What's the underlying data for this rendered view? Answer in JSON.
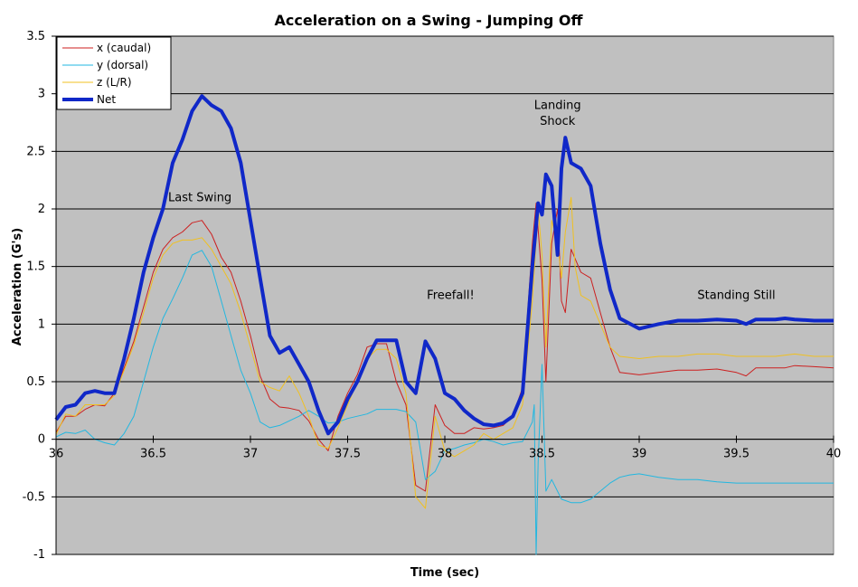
{
  "chart_data": {
    "type": "line",
    "title": "Acceleration on a Swing - Jumping Off",
    "xlabel": "Time (sec)",
    "ylabel": "Acceleration (G's)",
    "xlim": [
      36,
      40
    ],
    "ylim": [
      -1,
      3.5
    ],
    "x_ticks": [
      36,
      36.5,
      37,
      37.5,
      38,
      38.5,
      39,
      39.5,
      40
    ],
    "x_tick_labels": [
      "36",
      "36.5",
      "37",
      "37.5",
      "38",
      "38.5",
      "39",
      "39.5",
      "40"
    ],
    "y_ticks": [
      -1,
      -0.5,
      0,
      0.5,
      1,
      1.5,
      2,
      2.5,
      3,
      3.5
    ],
    "y_tick_labels": [
      "-1",
      "-0.5",
      "0",
      "0.5",
      "1",
      "1.5",
      "2",
      "2.5",
      "3",
      "3.5"
    ],
    "grid": "horizontal",
    "legend_position": "top-left",
    "plot_background": "#c0c0c0",
    "series": [
      {
        "name": "x (caudal)",
        "color": "#cc1f1f",
        "line_width": 1,
        "x": [
          36.0,
          36.05,
          36.1,
          36.15,
          36.2,
          36.25,
          36.3,
          36.35,
          36.4,
          36.45,
          36.5,
          36.55,
          36.6,
          36.65,
          36.7,
          36.75,
          36.8,
          36.85,
          36.9,
          36.95,
          37.0,
          37.05,
          37.1,
          37.15,
          37.2,
          37.25,
          37.3,
          37.35,
          37.4,
          37.45,
          37.5,
          37.55,
          37.6,
          37.65,
          37.7,
          37.75,
          37.8,
          37.85,
          37.9,
          37.95,
          38.0,
          38.05,
          38.1,
          38.15,
          38.2,
          38.25,
          38.3,
          38.35,
          38.4,
          38.45,
          38.47,
          38.5,
          38.52,
          38.55,
          38.58,
          38.6,
          38.62,
          38.65,
          38.7,
          38.75,
          38.8,
          38.85,
          38.9,
          39.0,
          39.1,
          39.2,
          39.3,
          39.4,
          39.5,
          39.55,
          39.6,
          39.7,
          39.75,
          39.8,
          39.9,
          40.0
        ],
        "y": [
          0.06,
          0.2,
          0.2,
          0.26,
          0.3,
          0.29,
          0.4,
          0.62,
          0.85,
          1.15,
          1.45,
          1.65,
          1.75,
          1.8,
          1.88,
          1.9,
          1.78,
          1.58,
          1.45,
          1.2,
          0.9,
          0.55,
          0.35,
          0.28,
          0.27,
          0.25,
          0.16,
          0.0,
          -0.1,
          0.2,
          0.4,
          0.56,
          0.8,
          0.83,
          0.83,
          0.5,
          0.3,
          -0.4,
          -0.45,
          0.3,
          0.12,
          0.05,
          0.05,
          0.1,
          0.09,
          0.1,
          0.12,
          0.2,
          0.45,
          1.7,
          2.05,
          1.38,
          0.5,
          1.7,
          2.0,
          1.2,
          1.1,
          1.65,
          1.45,
          1.4,
          1.1,
          0.8,
          0.58,
          0.56,
          0.58,
          0.6,
          0.6,
          0.61,
          0.58,
          0.55,
          0.62,
          0.62,
          0.62,
          0.64,
          0.63,
          0.62
        ]
      },
      {
        "name": "y (dorsal)",
        "color": "#22b7e0",
        "line_width": 1,
        "x": [
          36.0,
          36.05,
          36.1,
          36.15,
          36.2,
          36.25,
          36.3,
          36.35,
          36.4,
          36.45,
          36.5,
          36.55,
          36.6,
          36.65,
          36.7,
          36.75,
          36.8,
          36.85,
          36.9,
          36.95,
          37.0,
          37.05,
          37.1,
          37.15,
          37.2,
          37.25,
          37.3,
          37.35,
          37.4,
          37.45,
          37.5,
          37.55,
          37.6,
          37.65,
          37.7,
          37.75,
          37.8,
          37.85,
          37.9,
          37.95,
          38.0,
          38.05,
          38.1,
          38.15,
          38.2,
          38.25,
          38.3,
          38.35,
          38.4,
          38.45,
          38.46,
          38.47,
          38.48,
          38.5,
          38.52,
          38.55,
          38.6,
          38.65,
          38.7,
          38.75,
          38.8,
          38.85,
          38.9,
          38.95,
          39.0,
          39.1,
          39.2,
          39.3,
          39.4,
          39.5,
          39.6,
          39.7,
          39.8,
          39.9,
          40.0
        ],
        "y": [
          0.02,
          0.06,
          0.05,
          0.08,
          0.0,
          -0.03,
          -0.05,
          0.05,
          0.2,
          0.5,
          0.8,
          1.05,
          1.22,
          1.4,
          1.6,
          1.64,
          1.5,
          1.2,
          0.9,
          0.6,
          0.4,
          0.15,
          0.1,
          0.12,
          0.16,
          0.2,
          0.25,
          0.2,
          0.14,
          0.15,
          0.18,
          0.2,
          0.22,
          0.26,
          0.26,
          0.26,
          0.24,
          0.15,
          -0.35,
          -0.28,
          -0.1,
          -0.08,
          -0.05,
          -0.03,
          0.0,
          -0.02,
          -0.05,
          -0.03,
          -0.02,
          0.15,
          0.3,
          -1.0,
          -0.2,
          0.65,
          -0.45,
          -0.35,
          -0.52,
          -0.55,
          -0.55,
          -0.52,
          -0.45,
          -0.38,
          -0.33,
          -0.31,
          -0.3,
          -0.33,
          -0.35,
          -0.35,
          -0.37,
          -0.38,
          -0.38,
          -0.38,
          -0.38,
          -0.38,
          -0.38
        ]
      },
      {
        "name": "z (L/R)",
        "color": "#f0c020",
        "line_width": 1,
        "x": [
          36.0,
          36.05,
          36.1,
          36.15,
          36.2,
          36.25,
          36.3,
          36.35,
          36.4,
          36.45,
          36.5,
          36.55,
          36.6,
          36.65,
          36.7,
          36.75,
          36.8,
          36.85,
          36.9,
          36.95,
          37.0,
          37.05,
          37.1,
          37.15,
          37.2,
          37.25,
          37.3,
          37.35,
          37.4,
          37.45,
          37.5,
          37.55,
          37.6,
          37.65,
          37.7,
          37.75,
          37.8,
          37.85,
          37.9,
          37.95,
          38.0,
          38.05,
          38.1,
          38.15,
          38.2,
          38.25,
          38.3,
          38.35,
          38.4,
          38.45,
          38.48,
          38.5,
          38.52,
          38.55,
          38.58,
          38.6,
          38.62,
          38.65,
          38.67,
          38.7,
          38.75,
          38.8,
          38.85,
          38.9,
          39.0,
          39.1,
          39.2,
          39.3,
          39.4,
          39.5,
          39.6,
          39.7,
          39.8,
          39.9,
          40.0
        ],
        "y": [
          0.04,
          0.22,
          0.2,
          0.3,
          0.3,
          0.3,
          0.38,
          0.6,
          0.82,
          1.1,
          1.4,
          1.6,
          1.7,
          1.73,
          1.73,
          1.75,
          1.65,
          1.5,
          1.35,
          1.1,
          0.8,
          0.5,
          0.45,
          0.42,
          0.55,
          0.4,
          0.2,
          -0.05,
          -0.08,
          0.1,
          0.3,
          0.5,
          0.7,
          0.78,
          0.78,
          0.7,
          0.4,
          -0.5,
          -0.6,
          0.2,
          -0.1,
          -0.15,
          -0.1,
          -0.05,
          0.05,
          0.0,
          0.05,
          0.1,
          0.3,
          1.2,
          2.0,
          1.6,
          0.8,
          1.9,
          1.7,
          1.4,
          1.8,
          2.1,
          1.5,
          1.25,
          1.2,
          1.0,
          0.8,
          0.72,
          0.7,
          0.72,
          0.72,
          0.74,
          0.74,
          0.72,
          0.72,
          0.72,
          0.74,
          0.72,
          0.72
        ]
      },
      {
        "name": "Net",
        "color": "#1028c8",
        "line_width": 4,
        "x": [
          36.0,
          36.05,
          36.1,
          36.15,
          36.2,
          36.25,
          36.3,
          36.35,
          36.4,
          36.45,
          36.5,
          36.55,
          36.6,
          36.65,
          36.7,
          36.75,
          36.8,
          36.85,
          36.9,
          36.95,
          37.0,
          37.05,
          37.1,
          37.15,
          37.2,
          37.25,
          37.3,
          37.35,
          37.4,
          37.45,
          37.5,
          37.55,
          37.6,
          37.65,
          37.7,
          37.75,
          37.8,
          37.85,
          37.9,
          37.95,
          38.0,
          38.05,
          38.1,
          38.15,
          38.2,
          38.25,
          38.3,
          38.35,
          38.4,
          38.45,
          38.48,
          38.5,
          38.52,
          38.55,
          38.58,
          38.6,
          38.62,
          38.65,
          38.7,
          38.75,
          38.8,
          38.85,
          38.9,
          39.0,
          39.1,
          39.2,
          39.3,
          39.4,
          39.5,
          39.55,
          39.6,
          39.7,
          39.75,
          39.8,
          39.9,
          40.0
        ],
        "y": [
          0.17,
          0.28,
          0.3,
          0.4,
          0.42,
          0.4,
          0.4,
          0.7,
          1.05,
          1.45,
          1.75,
          2.0,
          2.4,
          2.6,
          2.85,
          2.98,
          2.9,
          2.85,
          2.7,
          2.4,
          1.9,
          1.4,
          0.9,
          0.75,
          0.8,
          0.65,
          0.5,
          0.25,
          0.05,
          0.15,
          0.35,
          0.5,
          0.7,
          0.86,
          0.86,
          0.86,
          0.5,
          0.4,
          0.85,
          0.7,
          0.4,
          0.35,
          0.25,
          0.18,
          0.13,
          0.12,
          0.14,
          0.2,
          0.4,
          1.5,
          2.05,
          1.95,
          2.3,
          2.2,
          1.6,
          2.35,
          2.62,
          2.4,
          2.35,
          2.2,
          1.7,
          1.3,
          1.05,
          0.96,
          1.0,
          1.03,
          1.03,
          1.04,
          1.03,
          1.0,
          1.04,
          1.04,
          1.05,
          1.04,
          1.03,
          1.03
        ]
      }
    ],
    "annotations": [
      {
        "text": "Last Swing",
        "x": 36.74,
        "y": 2.1
      },
      {
        "text": "Landing",
        "x": 38.58,
        "y": 2.9
      },
      {
        "text": "Shock",
        "x": 38.58,
        "y": 2.76
      },
      {
        "text": "Freefall!",
        "x": 38.03,
        "y": 1.25
      },
      {
        "text": "Standing Still",
        "x": 39.5,
        "y": 1.25
      }
    ]
  }
}
